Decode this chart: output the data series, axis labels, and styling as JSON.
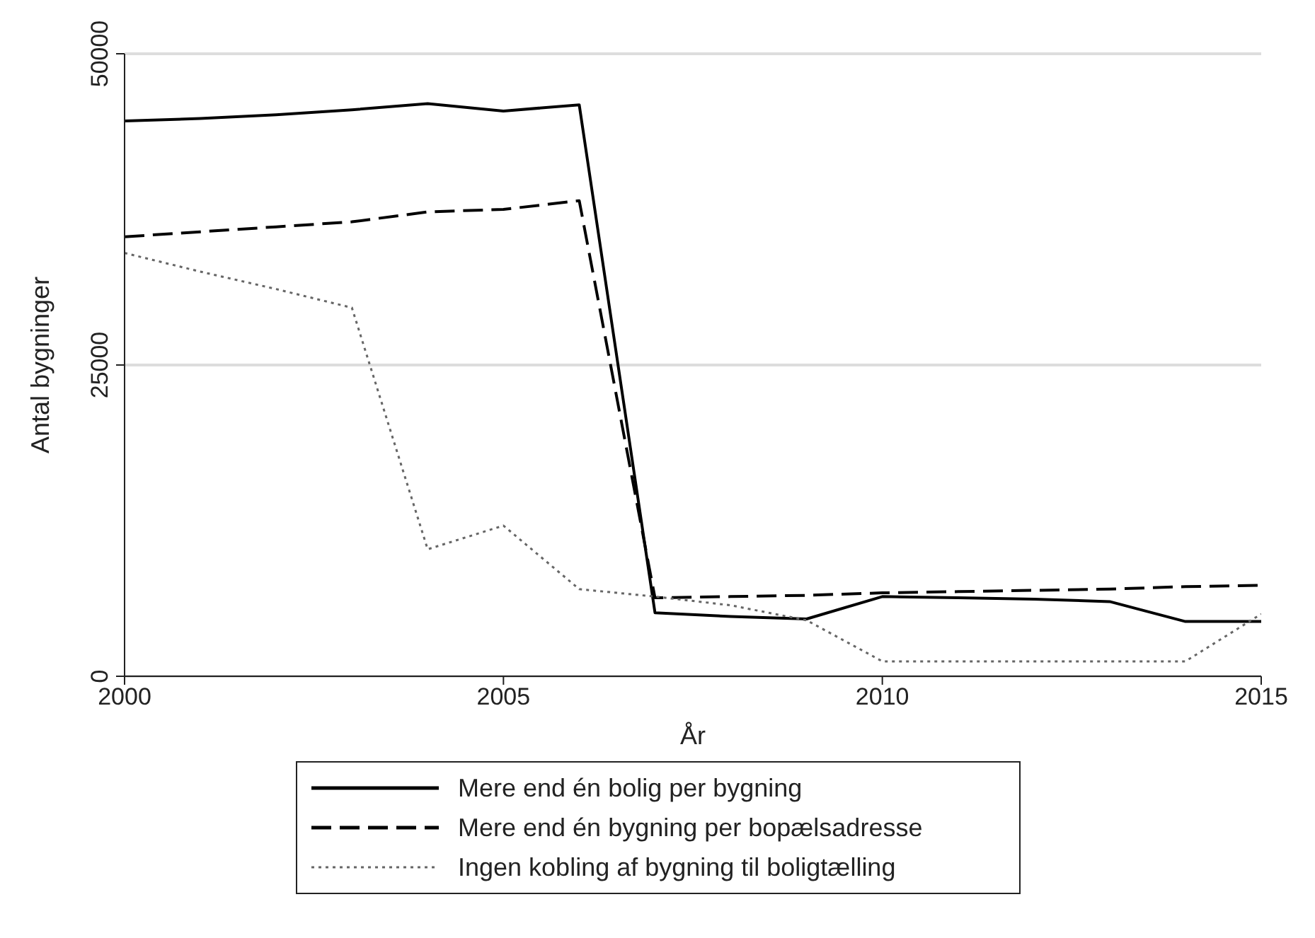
{
  "chart_data": {
    "type": "line",
    "xlabel": "År",
    "ylabel": "Antal bygninger",
    "x": [
      2000,
      2001,
      2002,
      2003,
      2004,
      2005,
      2006,
      2007,
      2008,
      2009,
      2010,
      2011,
      2012,
      2013,
      2014,
      2015
    ],
    "series": [
      {
        "name": "Mere end én bolig per bygning",
        "color": "#000000",
        "line_style": "solid",
        "values": [
          44600,
          44800,
          45100,
          45500,
          46000,
          45400,
          45900,
          5100,
          4800,
          4600,
          6400,
          6300,
          6200,
          6000,
          4400,
          4400
        ]
      },
      {
        "name": "Mere end én bygning per bopælsadresse",
        "color": "#000000",
        "line_style": "dashed",
        "values": [
          35300,
          35700,
          36100,
          36500,
          37300,
          37500,
          38200,
          6300,
          6400,
          6500,
          6700,
          6800,
          6900,
          7000,
          7200,
          7300
        ]
      },
      {
        "name": "Ingen kobling af bygning til boligtælling",
        "color": "#666666",
        "line_style": "dotted",
        "values": [
          34000,
          32500,
          31100,
          29600,
          10200,
          12100,
          7000,
          6400,
          5700,
          4500,
          1200,
          1200,
          1200,
          1200,
          1200,
          5000
        ]
      }
    ],
    "xlim": [
      2000,
      2015
    ],
    "xticks": [
      2000,
      2005,
      2010,
      2015
    ],
    "ylim": [
      0,
      50000
    ],
    "yticks": [
      0,
      25000,
      50000
    ],
    "grid": "y",
    "legend": "bottom"
  }
}
